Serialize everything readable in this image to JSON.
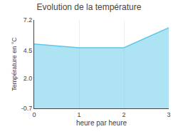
{
  "chart_data": {
    "type": "area",
    "title": "Evolution de la température",
    "xlabel": "heure par heure",
    "ylabel": "Température en °C",
    "x": [
      0,
      1,
      2,
      3
    ],
    "values": [
      5.05,
      4.72,
      4.72,
      6.5
    ],
    "color": "#5bc8e8",
    "xlim": [
      0,
      3
    ],
    "ylim": [
      -0.7,
      7.2
    ],
    "xticks": [
      0,
      1,
      2,
      3
    ],
    "yticks": [
      -0.7,
      {
        "value": 2,
        "label": "2.0"
      },
      4.5,
      7.2
    ],
    "grid": "x"
  }
}
